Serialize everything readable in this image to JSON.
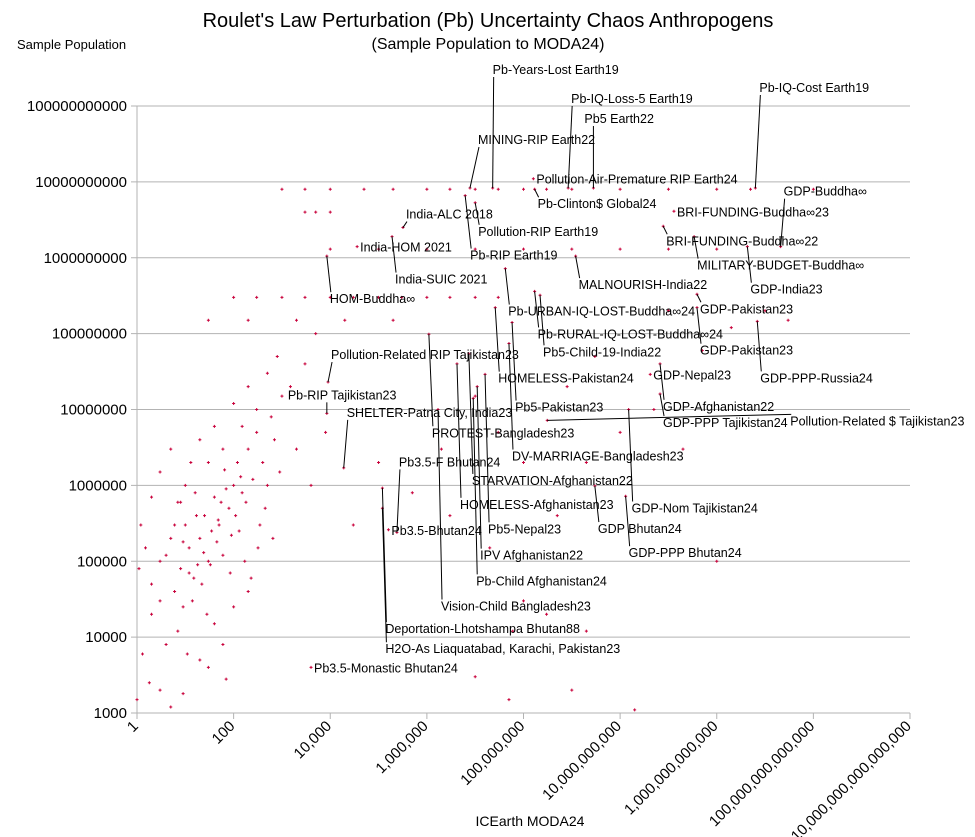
{
  "chart_data": {
    "type": "scatter",
    "title": "Roulet's Law Perturbation (Pb) Uncertainty Chaos Anthropogens",
    "subtitle": "(Sample Population to MODA24)",
    "xlabel": "ICEarth MODA24",
    "ylabel": "Sample Population",
    "x_scale": "log",
    "y_scale": "log",
    "xlim": [
      1,
      1e+16
    ],
    "ylim": [
      1000,
      100000000000.0
    ],
    "grid": "horizontal major gridlines",
    "legend": "none",
    "marker": "plus",
    "point_color": "#c8003a",
    "x_ticks": [
      {
        "value": 1,
        "label": "1"
      },
      {
        "value": 100,
        "label": "100"
      },
      {
        "value": 10000,
        "label": "10,000"
      },
      {
        "value": 1000000.0,
        "label": "1,000,000"
      },
      {
        "value": 100000000.0,
        "label": "100,000,000"
      },
      {
        "value": 10000000000.0,
        "label": "10,000,000,000"
      },
      {
        "value": 1000000000000.0,
        "label": "1,000,000,000,000"
      },
      {
        "value": 100000000000000.0,
        "label": "100,000,000,000,000"
      },
      {
        "value": 1e+16,
        "label": "10,000,000,000,000,000"
      }
    ],
    "y_ticks": [
      {
        "value": 1000,
        "label": "1000"
      },
      {
        "value": 10000,
        "label": "10000"
      },
      {
        "value": 100000,
        "label": "100000"
      },
      {
        "value": 1000000,
        "label": "1000000"
      },
      {
        "value": 10000000,
        "label": "10000000"
      },
      {
        "value": 100000000,
        "label": "100000000"
      },
      {
        "value": 1000000000,
        "label": "1000000000"
      },
      {
        "value": 10000000000,
        "label": "10000000000"
      },
      {
        "value": 100000000000,
        "label": "100000000000"
      }
    ],
    "annotated_points": [
      {
        "label": "Pb-Years-Lost Earth19",
        "x": 23000000.0,
        "y": 8300000000.0
      },
      {
        "label": "Pb-IQ-Loss-5 Earth19",
        "x": 840000000.0,
        "y": 8300000000.0
      },
      {
        "label": "Pb5 Earth22",
        "x": 2800000000.0,
        "y": 8300000000.0
      },
      {
        "label": "Pb-IQ-Cost Earth19",
        "x": 6300000000000.0,
        "y": 8300000000.0
      },
      {
        "label": "MINING-RIP Earth22",
        "x": 7800000.0,
        "y": 8300000000.0
      },
      {
        "label": "Pollution-Air-Premature RIP Earth24",
        "x": 160000000.0,
        "y": 11000000000.0
      },
      {
        "label": "Pb-Clinton$ Global24",
        "x": 170000000.0,
        "y": 8000000000.0
      },
      {
        "label": "Pollution-RIP Earth19",
        "x": 10000000.0,
        "y": 5300000000.0
      },
      {
        "label": "Pb-RIP Earth19",
        "x": 6200000.0,
        "y": 6600000000.0
      },
      {
        "label": "BRI-FUNDING-Buddha∞23",
        "x": 130000000000.0,
        "y": 4100000000.0
      },
      {
        "label": "BRI-FUNDING-Buddha∞22",
        "x": 78000000000.0,
        "y": 2600000000.0
      },
      {
        "label": "India-ALC 2018",
        "x": 320000.0,
        "y": 2500000000.0
      },
      {
        "label": "India-SUIC 2021",
        "x": 190000.0,
        "y": 1900000000.0
      },
      {
        "label": "MILITARY-BUDGET-Buddha∞",
        "x": 340000000000.0,
        "y": 1900000000.0
      },
      {
        "label": "India-HOM 2021",
        "x": 36000.0,
        "y": 1400000000.0
      },
      {
        "label": "GDP-India23",
        "x": 4300000000000.0,
        "y": 1400000000.0
      },
      {
        "label": "GDP-Buddha∞",
        "x": 21000000000000.0,
        "y": 1400000000.0
      },
      {
        "label": "HOM-Buddha∞",
        "x": 8500.0,
        "y": 1050000000.0
      },
      {
        "label": "MALNOURISH-India22",
        "x": 1200000000.0,
        "y": 1050000000.0
      },
      {
        "label": "Pb-URBAN-IQ-LOST-Buddha∞24",
        "x": 42000000.0,
        "y": 720000000.0
      },
      {
        "label": "Pb-RURAL-IQ-LOST-Buddha∞24",
        "x": 170000000.0,
        "y": 360000000.0
      },
      {
        "label": "Pb5-Child-19-India22",
        "x": 220000000.0,
        "y": 320000000.0
      },
      {
        "label": "GDP-Pakistan23",
        "x": 390000000000.0,
        "y": 330000000.0
      },
      {
        "label": "HOMELESS-Pakistan24",
        "x": 26000000.0,
        "y": 220000000.0
      },
      {
        "label": "GDP-Pakistan23",
        "x": 390000000000.0,
        "y": 220000000.0
      },
      {
        "label": "Pb5-Pakistan23",
        "x": 58000000.0,
        "y": 140000000.0
      },
      {
        "label": "GDP-PPP-Russia24",
        "x": 6900000000000.0,
        "y": 145000000.0
      },
      {
        "label": "PROTEST-Bangladesh23",
        "x": 1100000.0,
        "y": 98000000.0
      },
      {
        "label": "DV-MARRIAGE-Bangladesh23",
        "x": 50000000.0,
        "y": 74000000.0
      },
      {
        "label": "STARVATION-Afghanistan22",
        "x": 7400000.0,
        "y": 54000000.0
      },
      {
        "label": "HOMELESS-Afghanistan23",
        "x": 4200000.0,
        "y": 40000000.0
      },
      {
        "label": "GDP-Afghanistan22",
        "x": 67000000000.0,
        "y": 40000000.0
      },
      {
        "label": "Pb5-Nepal23",
        "x": 16000000.0,
        "y": 29000000.0
      },
      {
        "label": "GDP-Nepal23",
        "x": 42000000000.0,
        "y": 29000000.0
      },
      {
        "label": "Pollution-Related RIP Tajikistan23",
        "x": 9000.0,
        "y": 23000000.0
      },
      {
        "label": "IPV Afghanistan22",
        "x": 11000000.0,
        "y": 20000000.0
      },
      {
        "label": "Pb-RIP Tajikistan23",
        "x": 8500.0,
        "y": 8900000.0
      },
      {
        "label": "GDP-PPP Tajikistan24",
        "x": 67000000000.0,
        "y": 16000000.0
      },
      {
        "label": "Pb-Child Afghanistan24",
        "x": 9100000.0,
        "y": 14000000.0
      },
      {
        "label": "Vision-Child Bangladesh23",
        "x": 1700000.0,
        "y": 10000000.0
      },
      {
        "label": "GDP-Nom Tajikistan24",
        "x": 15000000000.0,
        "y": 10000000.0
      },
      {
        "label": "Pollution-Related $ Tajikistan23",
        "x": 310000000.0,
        "y": 7200000.0
      },
      {
        "label": "SHELTER-Patna City, India23",
        "x": 19000.0,
        "y": 1700000.0
      },
      {
        "label": "Deportation-Lhotshampa Bhutan88",
        "x": 120000.0,
        "y": 920000.0
      },
      {
        "label": "GDP Bhutan24",
        "x": 3000000000.0,
        "y": 980000.0
      },
      {
        "label": "GDP-PPP Bhutan24",
        "x": 13000000000.0,
        "y": 720000.0
      },
      {
        "label": "H2O-As Liaquatabad, Karachi, Pakistan23",
        "x": 120000.0,
        "y": 500000.0
      },
      {
        "label": "Pb3.5-Bhutan24",
        "x": 160000.0,
        "y": 260000.0
      },
      {
        "label": "Pb3.5-F Bhutan24",
        "x": 240000.0,
        "y": 240000.0
      },
      {
        "label": "Pb3.5-Monastic Bhutan24",
        "x": 4000.0,
        "y": 4000.0
      }
    ],
    "points": [
      [
        2,
        50000.0
      ],
      [
        3,
        100000.0
      ],
      [
        5,
        200000.0
      ],
      [
        8,
        80000.0
      ],
      [
        10,
        300000.0
      ],
      [
        12,
        150000.0
      ],
      [
        15,
        60000.0
      ],
      [
        20,
        200000.0
      ],
      [
        25,
        400000.0
      ],
      [
        30,
        100000.0
      ],
      [
        40,
        700000.0
      ],
      [
        50,
        300000.0
      ],
      [
        60,
        120000.0
      ],
      [
        80,
        500000.0
      ],
      [
        100,
        1000000.0
      ],
      [
        120,
        2000000.0
      ],
      [
        150,
        800000.0
      ],
      [
        200,
        3000000.0
      ],
      [
        300,
        5000000.0
      ],
      [
        400,
        2000000.0
      ],
      [
        600,
        8000000.0
      ],
      [
        1000,
        15000000.0
      ],
      [
        2,
        20000.0
      ],
      [
        3,
        30000.0
      ],
      [
        4,
        8000.0
      ],
      [
        6,
        40000.0
      ],
      [
        7,
        12000.0
      ],
      [
        9,
        25000.0
      ],
      [
        11,
        6000.0
      ],
      [
        14,
        30000.0
      ],
      [
        18,
        90000.0
      ],
      [
        22,
        50000.0
      ],
      [
        28,
        20000.0
      ],
      [
        35,
        250000.0
      ],
      [
        45,
        180000.0
      ],
      [
        55,
        600000.0
      ],
      [
        70,
        900000.0
      ],
      [
        90,
        220000.0
      ],
      [
        110,
        400000.0
      ],
      [
        140,
        1300000.0
      ],
      [
        180,
        600000.0
      ],
      [
        250,
        1200000.0
      ],
      [
        350,
        300000.0
      ],
      [
        500,
        1000000.0
      ],
      [
        700,
        4000000.0
      ],
      [
        1.5,
        150000.0
      ],
      [
        1.2,
        300000.0
      ],
      [
        1.1,
        80000.0
      ],
      [
        1.3,
        6000.0
      ],
      [
        1,
        1500.0
      ],
      [
        1.8,
        2500.0
      ],
      [
        4,
        120000.0
      ],
      [
        6,
        300000.0
      ],
      [
        8,
        600000.0
      ],
      [
        10,
        1000000.0
      ],
      [
        13,
        2000000.0
      ],
      [
        16,
        800000.0
      ],
      [
        20,
        4000000.0
      ],
      [
        30,
        2000000.0
      ],
      [
        40,
        6000000.0
      ],
      [
        60,
        3000000.0
      ],
      [
        100,
        12000000.0
      ],
      [
        150,
        6000000.0
      ],
      [
        200,
        20000000.0
      ],
      [
        300,
        10000000.0
      ],
      [
        500,
        30000000.0
      ],
      [
        800,
        50000000.0
      ],
      [
        1500,
        20000000.0
      ],
      [
        3000,
        40000000.0
      ],
      [
        5000,
        100000000.0
      ],
      [
        2,
        700000.0
      ],
      [
        3,
        1500000.0
      ],
      [
        5,
        3000000.0
      ],
      [
        7,
        600000.0
      ],
      [
        9,
        180000.0
      ],
      [
        12,
        70000.0
      ],
      [
        17,
        400000.0
      ],
      [
        24,
        130000.0
      ],
      [
        33,
        90000.0
      ],
      [
        48,
        350000.0
      ],
      [
        65,
        1600000.0
      ],
      [
        85,
        70000.0
      ],
      [
        130,
        250000.0
      ],
      [
        170,
        100000.0
      ],
      [
        230,
        60000.0
      ],
      [
        320,
        150000.0
      ],
      [
        450,
        500000.0
      ],
      [
        650,
        200000.0
      ],
      [
        900,
        1500000.0
      ],
      [
        2000,
        3000000.0
      ],
      [
        4000,
        1000000.0
      ],
      [
        8000,
        5000000.0
      ],
      [
        3,
        2000.0
      ],
      [
        20,
        5000.0
      ],
      [
        40,
        15000.0
      ],
      [
        60,
        8000.0
      ],
      [
        100,
        25000.0
      ],
      [
        200,
        40000.0
      ],
      [
        5,
        1200.0
      ],
      [
        9,
        1800.0
      ],
      [
        30,
        4000.0
      ],
      [
        70,
        2800.0
      ],
      [
        30000.0,
        300000.0
      ],
      [
        100000.0,
        2000000.0
      ],
      [
        500000.0,
        800000.0
      ],
      [
        2000000.0,
        3000000.0
      ],
      [
        10000000.0,
        15000000.0
      ],
      [
        30000000.0,
        5000000.0
      ],
      [
        100000000.0,
        2000000.0
      ],
      [
        500000000.0,
        400000.0
      ],
      [
        2000000000.0,
        2000000.0
      ],
      [
        10000000000.0,
        5000000.0
      ],
      [
        50000000000.0,
        10000000.0
      ],
      [
        200000000000.0,
        3000000.0
      ],
      [
        1000000000000.0,
        100000.0
      ],
      [
        300000000.0,
        20000.0
      ],
      [
        100000000.0,
        30000.0
      ],
      [
        60000000.0,
        12000.0
      ],
      [
        2000000000.0,
        12000.0
      ],
      [
        10000000.0,
        3000.0
      ],
      [
        50000000.0,
        1500.0
      ],
      [
        20000000000.0,
        1100.0
      ],
      [
        1000000000.0,
        2000.0
      ],
      [
        3000000.0,
        400000.0
      ],
      [
        20000000.0,
        150000.0
      ],
      [
        800000000.0,
        20000000.0
      ],
      [
        3000000000.0,
        50000000.0
      ],
      [
        100000000000.0,
        200000000.0
      ],
      [
        500000000000.0,
        60000000.0
      ],
      [
        2000000000000.0,
        120000000.0
      ],
      [
        10000000000000.0,
        200000000.0
      ],
      [
        30000000000000.0,
        150000000.0
      ],
      [
        100,
        300000000.0
      ],
      [
        300,
        300000000.0
      ],
      [
        1000,
        300000000.0
      ],
      [
        3000,
        300000000.0
      ],
      [
        10000.0,
        300000000.0
      ],
      [
        30000.0,
        300000000.0
      ],
      [
        100000.0,
        300000000.0
      ],
      [
        300000.0,
        300000000.0
      ],
      [
        1000000.0,
        300000000.0
      ],
      [
        3000000.0,
        300000000.0
      ],
      [
        10000000.0,
        300000000.0
      ],
      [
        30000000.0,
        300000000.0
      ],
      [
        30,
        150000000.0
      ],
      [
        200,
        150000000.0
      ],
      [
        2000,
        150000000.0
      ],
      [
        20000.0,
        150000000.0
      ],
      [
        200000.0,
        150000000.0
      ],
      [
        1000,
        8000000000.0
      ],
      [
        3000,
        8000000000.0
      ],
      [
        10000.0,
        8000000000.0
      ],
      [
        50000.0,
        8000000000.0
      ],
      [
        200000.0,
        8000000000.0
      ],
      [
        1000000.0,
        8000000000.0
      ],
      [
        3000000.0,
        8000000000.0
      ],
      [
        10000000.0,
        8000000000.0
      ],
      [
        30000000.0,
        8000000000.0
      ],
      [
        100000000.0,
        8000000000.0
      ],
      [
        300000000.0,
        8000000000.0
      ],
      [
        1000000000.0,
        8000000000.0
      ],
      [
        10000000000.0,
        8000000000.0
      ],
      [
        100000000000.0,
        8000000000.0
      ],
      [
        1000000000000.0,
        8000000000.0
      ],
      [
        5000000000000.0,
        8000000000.0
      ],
      [
        100000000000000.0,
        8000000000.0
      ],
      [
        10000.0,
        1300000000.0
      ],
      [
        100000.0,
        1300000000.0
      ],
      [
        1000000.0,
        1300000000.0
      ],
      [
        10000000.0,
        1300000000.0
      ],
      [
        100000000.0,
        1300000000.0
      ],
      [
        1000000000.0,
        1300000000.0
      ],
      [
        10000000000.0,
        1300000000.0
      ],
      [
        100000000000.0,
        1300000000.0
      ],
      [
        1000000000000.0,
        1300000000.0
      ],
      [
        3000,
        4000000000.0
      ],
      [
        5000,
        4000000000.0
      ],
      [
        10000.0,
        4000000000.0
      ]
    ]
  }
}
